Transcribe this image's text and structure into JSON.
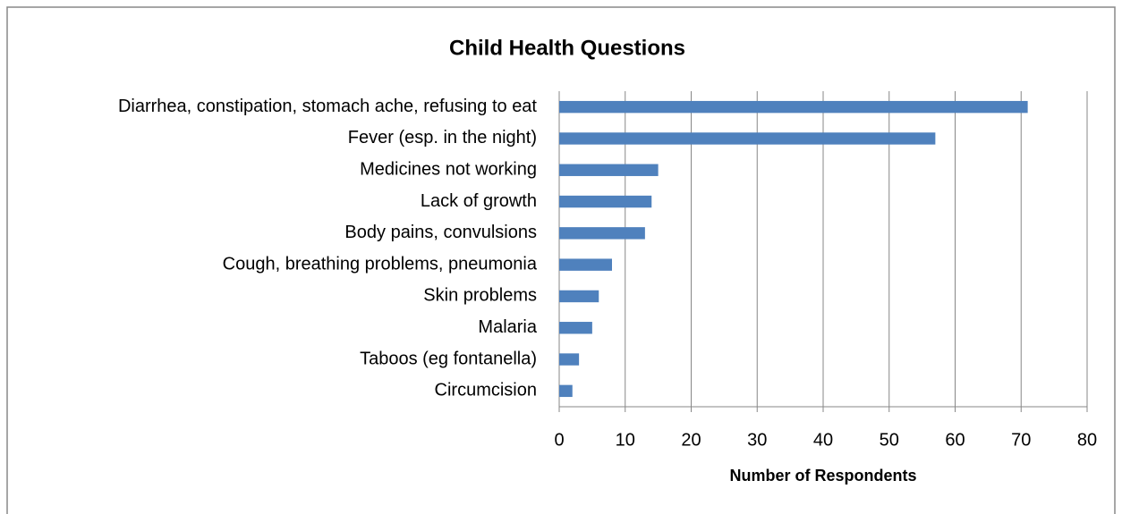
{
  "chart_data": {
    "type": "bar",
    "orientation": "horizontal",
    "title": "Child Health Questions",
    "x_label": "Number of Respondents",
    "categories": [
      "Diarrhea, constipation, stomach ache, refusing to eat",
      "Fever (esp. in the night)",
      "Medicines not working",
      "Lack of growth",
      "Body pains, convulsions",
      "Cough, breathing problems, pneumonia",
      "Skin problems",
      "Malaria",
      "Taboos (eg fontanella)",
      "Circumcision"
    ],
    "values": [
      71,
      57,
      15,
      14,
      13,
      8,
      6,
      5,
      3,
      2
    ],
    "color": "#4f81bd",
    "xlim": [
      0,
      80
    ],
    "xticks": [
      0,
      10,
      20,
      30,
      40,
      50,
      60,
      70,
      80
    ],
    "grid": true
  }
}
